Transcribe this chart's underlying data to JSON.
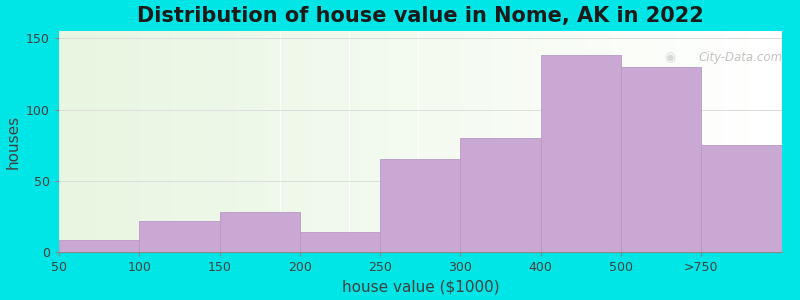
{
  "categories": [
    "50",
    "100",
    "150",
    "200",
    "250",
    "300",
    "400",
    "500",
    ">750"
  ],
  "values": [
    8,
    22,
    28,
    14,
    65,
    80,
    138,
    130,
    75
  ],
  "bar_color": "#c9a8d4",
  "bar_edgecolor": "#b898c8",
  "background_outer": "#00e5e5",
  "plot_bg_left": "#e8f5e0",
  "plot_bg_right": "#f8fff8",
  "title": "Distribution of house value in Nome, AK in 2022",
  "xlabel": "house value ($1000)",
  "ylabel": "houses",
  "ylim": [
    0,
    155
  ],
  "yticks": [
    0,
    50,
    100,
    150
  ],
  "title_fontsize": 15,
  "axis_label_fontsize": 11,
  "tick_fontsize": 9,
  "grid_color": "#dddddd",
  "watermark_text": "City-Data.com"
}
